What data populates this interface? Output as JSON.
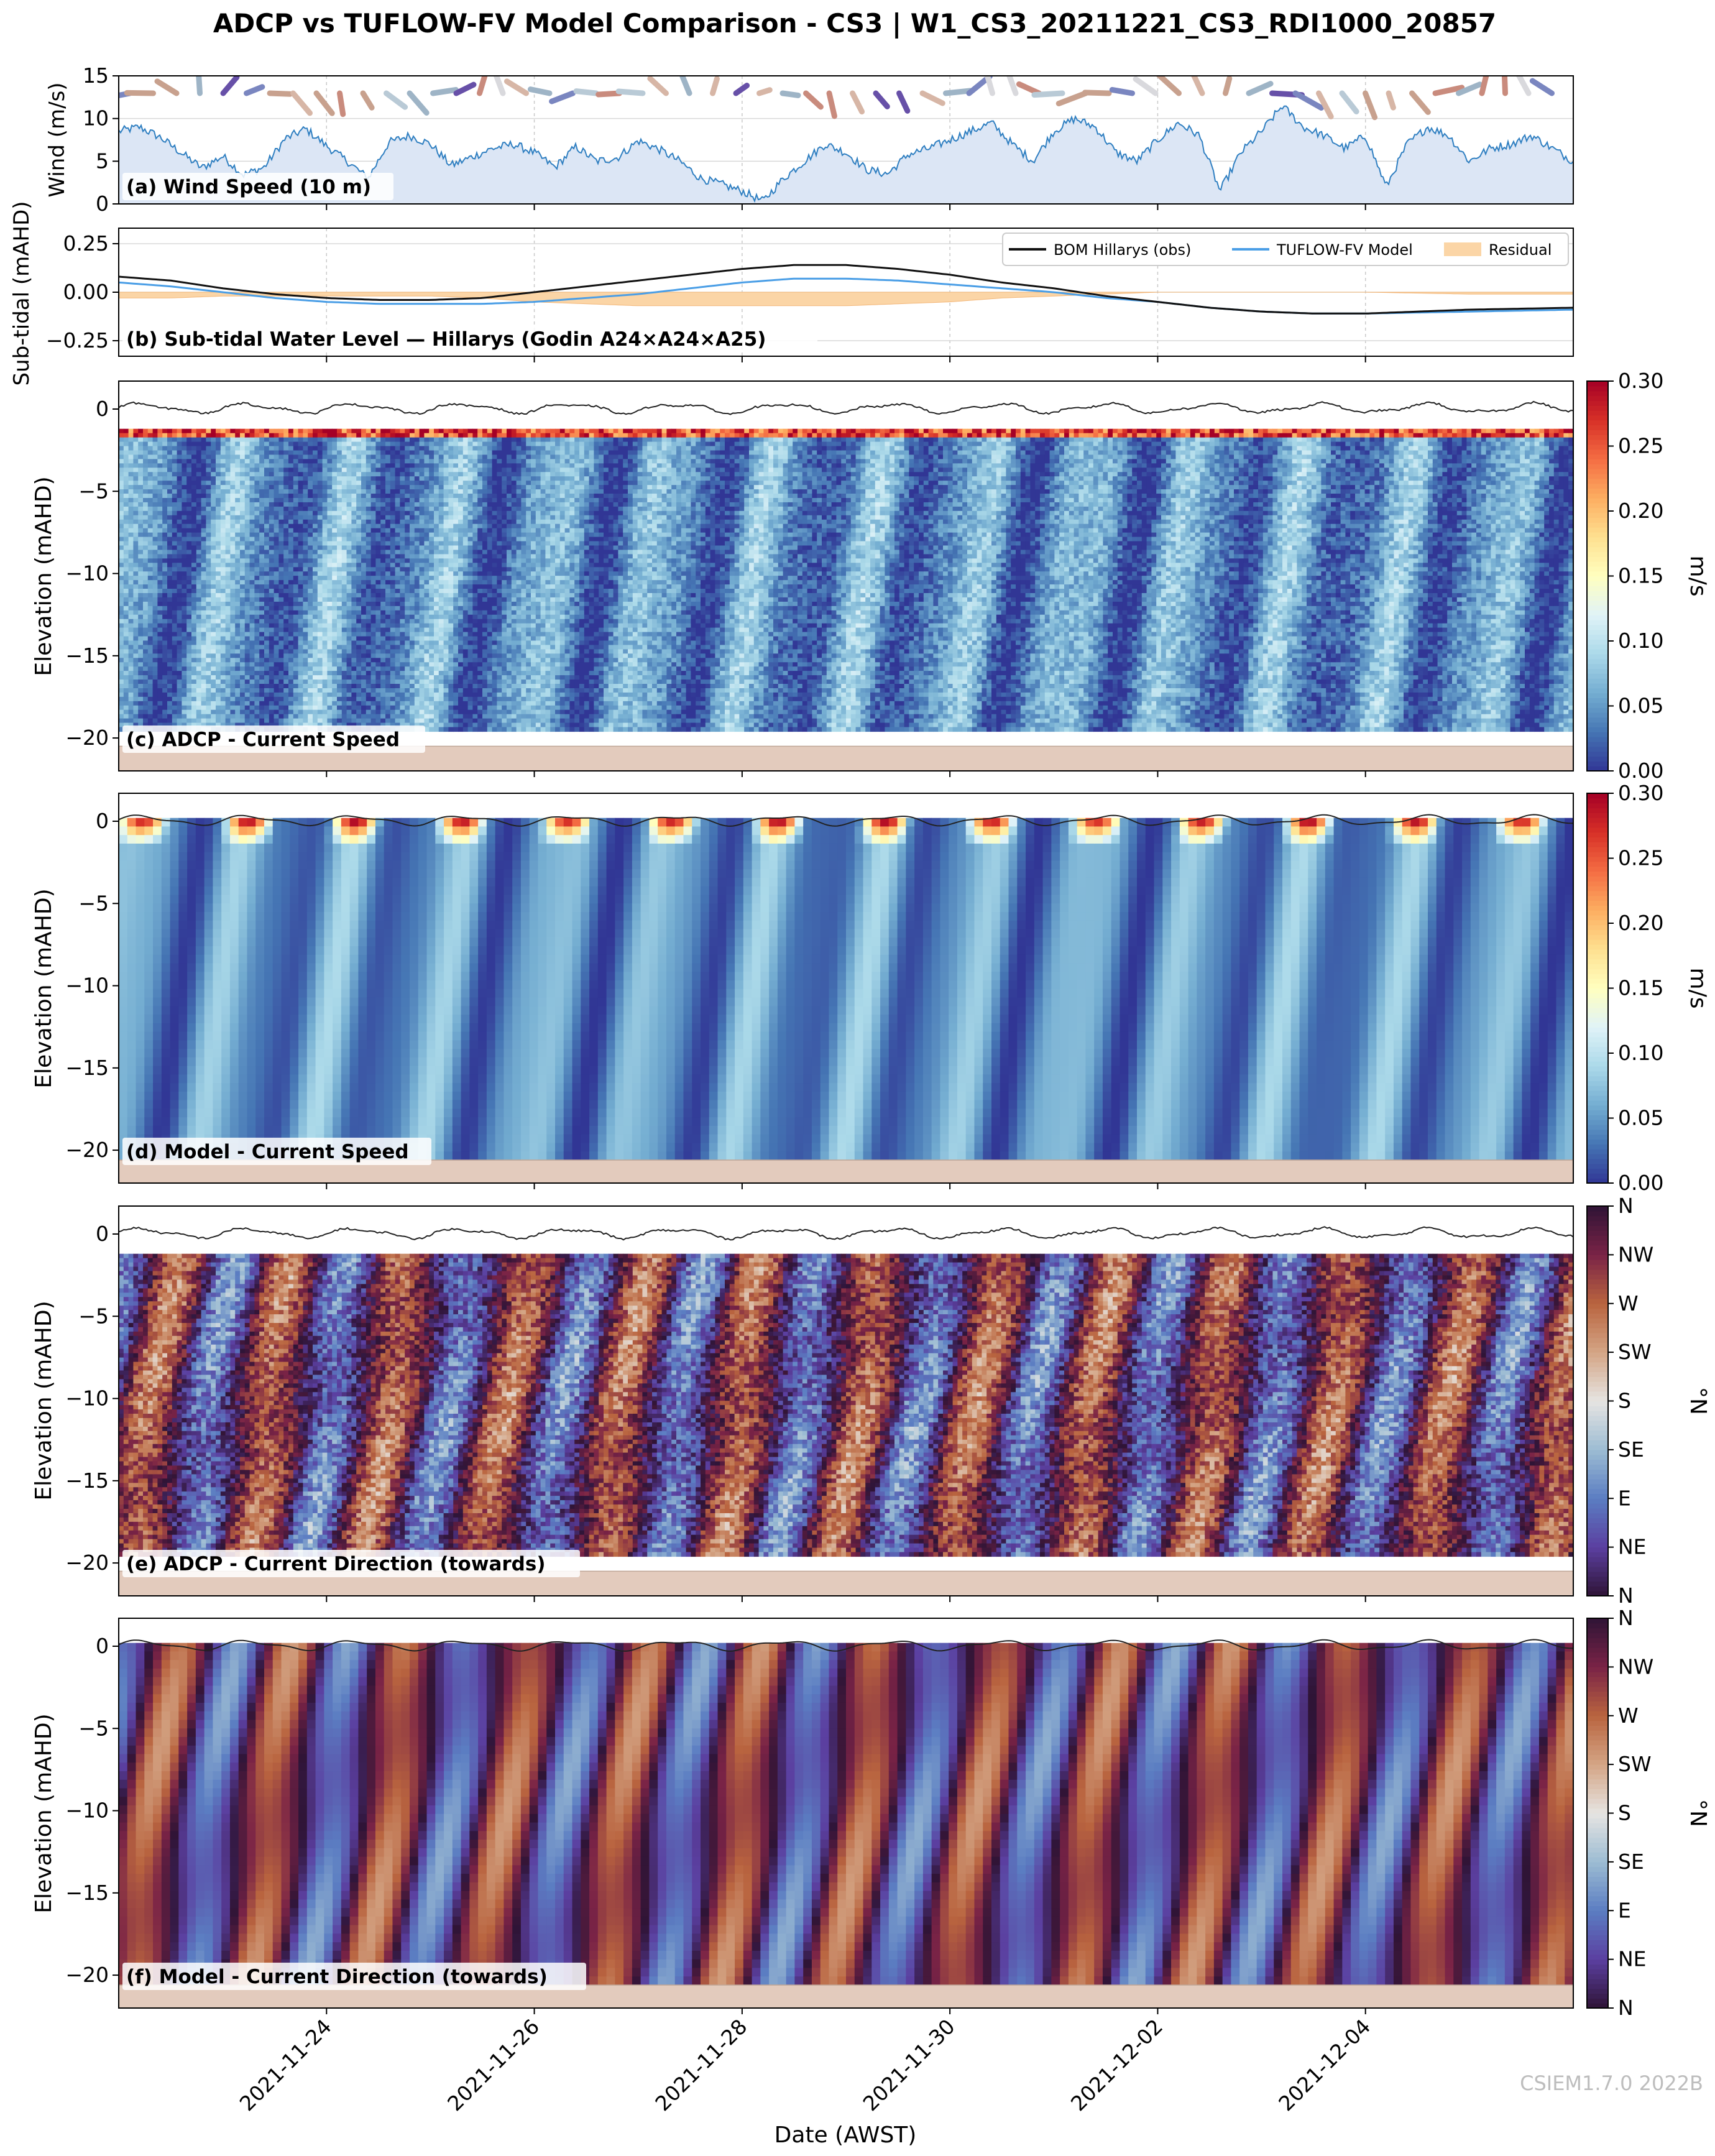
{
  "figure": {
    "title": "ADCP vs TUFLOW-FV Model Comparison - CS3 | W1_CS3_20211221_CS3_RDI1000_20857",
    "xlabel": "Date (AWST)",
    "watermark": "CSIEM1.7.0 2022B",
    "x_tick_labels": [
      "2021-11-24",
      "2021-11-26",
      "2021-11-28",
      "2021-11-30",
      "2021-12-02",
      "2021-12-04"
    ],
    "x_ticks_day": [
      1,
      3,
      5,
      7,
      9,
      11
    ],
    "x_range_day": [
      -1.0,
      13.0
    ]
  },
  "colors": {
    "wind_fill": "#dce6f5",
    "wind_line": "#2f7fc1",
    "obs_line": "#111111",
    "model_line": "#4a9ee6",
    "residual_fill": "#fbd5a6",
    "bed": "#e3cbbd",
    "speed_cmap": [
      "#313695",
      "#4575b4",
      "#74add1",
      "#abd9e9",
      "#e0f3f8",
      "#ffffbf",
      "#fee090",
      "#fdae61",
      "#f46d43",
      "#d73027",
      "#a50026"
    ],
    "dir_cmap": [
      "#2f1436",
      "#5b3fa0",
      "#5b7dc2",
      "#9cbcd3",
      "#e6e4e2",
      "#d4a585",
      "#b9643f",
      "#7a2346",
      "#2f1436"
    ]
  },
  "chart_data": [
    {
      "id": "a",
      "type": "area",
      "panel_label": "(a) Wind Speed (10 m)",
      "ylabel": "Wind (m/s)",
      "ylim": [
        0,
        15
      ],
      "y_ticks": [
        "0",
        "5",
        "10",
        "15"
      ],
      "grid": true,
      "series": [
        {
          "x_day": [
            -1.0,
            -0.8,
            -0.6,
            -0.4,
            -0.2,
            0.0,
            0.2,
            0.4,
            0.6,
            0.8,
            1.0,
            1.2,
            1.4,
            1.6,
            1.8,
            2.0,
            2.2,
            2.4,
            2.6,
            2.8,
            3.0,
            3.2,
            3.4,
            3.6,
            3.8,
            4.0,
            4.2,
            4.4,
            4.6,
            4.8,
            5.0,
            5.2,
            5.4,
            5.6,
            5.8,
            6.0,
            6.2,
            6.4,
            6.6,
            6.8,
            7.0,
            7.2,
            7.4,
            7.6,
            7.8,
            8.0,
            8.2,
            8.4,
            8.6,
            8.8,
            9.0,
            9.2,
            9.4,
            9.6,
            9.8,
            10.0,
            10.2,
            10.4,
            10.6,
            10.8,
            11.0,
            11.2,
            11.4,
            11.6,
            11.8,
            12.0,
            12.2,
            12.4,
            12.6,
            12.8,
            13.0
          ],
          "values": [
            8.5,
            9.0,
            7.8,
            6.0,
            4.2,
            5.6,
            3.4,
            4.3,
            7.6,
            8.8,
            6.8,
            5.0,
            3.0,
            7.2,
            8.0,
            7.0,
            4.5,
            5.5,
            6.5,
            7.0,
            6.0,
            4.3,
            6.7,
            5.0,
            5.4,
            7.4,
            6.4,
            5.0,
            3.0,
            2.3,
            1.5,
            0.3,
            3.0,
            5.0,
            7.0,
            6.0,
            4.0,
            3.5,
            5.8,
            6.5,
            7.5,
            8.5,
            9.5,
            7.0,
            5.0,
            8.5,
            10.0,
            9.0,
            6.0,
            5.0,
            7.5,
            9.5,
            8.0,
            1.5,
            6.0,
            8.5,
            11.5,
            9.0,
            8.0,
            6.5,
            8.0,
            2.0,
            7.0,
            9.0,
            8.0,
            5.0,
            6.5,
            7.0,
            8.0,
            6.5,
            5.0
          ]
        }
      ]
    },
    {
      "id": "b",
      "type": "line",
      "panel_label": "(b) Sub-tidal Water Level — Hillarys (Godin A24×A24×A25)",
      "ylabel": "Sub-tidal (mAHD)",
      "ylim": [
        -0.33,
        0.33
      ],
      "y_ticks": [
        "−0.25",
        "0.00",
        "0.25"
      ],
      "y_tick_values": [
        -0.25,
        0.0,
        0.25
      ],
      "legend_position": "top-right",
      "grid": true,
      "x_day": [
        -1.0,
        -0.5,
        0.0,
        0.5,
        1.0,
        1.5,
        2.0,
        2.5,
        3.0,
        3.5,
        4.0,
        4.5,
        5.0,
        5.5,
        6.0,
        6.5,
        7.0,
        7.5,
        8.0,
        8.5,
        9.0,
        9.5,
        10.0,
        10.5,
        11.0,
        11.5,
        12.0,
        12.5,
        13.0
      ],
      "series": [
        {
          "name": "BOM Hillarys (obs)",
          "values": [
            0.08,
            0.06,
            0.02,
            -0.01,
            -0.03,
            -0.04,
            -0.04,
            -0.03,
            0.0,
            0.03,
            0.06,
            0.09,
            0.12,
            0.14,
            0.14,
            0.12,
            0.09,
            0.05,
            0.02,
            -0.02,
            -0.05,
            -0.08,
            -0.1,
            -0.11,
            -0.11,
            -0.1,
            -0.09,
            -0.085,
            -0.08
          ]
        },
        {
          "name": "TUFLOW-FV Model",
          "values": [
            0.05,
            0.03,
            0.0,
            -0.03,
            -0.05,
            -0.06,
            -0.06,
            -0.06,
            -0.05,
            -0.03,
            -0.01,
            0.02,
            0.05,
            0.07,
            0.07,
            0.06,
            0.04,
            0.02,
            0.0,
            -0.03,
            -0.05,
            -0.08,
            -0.1,
            -0.11,
            -0.11,
            -0.105,
            -0.1,
            -0.095,
            -0.09
          ]
        },
        {
          "name": "Residual",
          "values": [
            -0.03,
            -0.03,
            -0.02,
            -0.02,
            -0.02,
            -0.02,
            -0.02,
            -0.03,
            -0.05,
            -0.06,
            -0.07,
            -0.07,
            -0.07,
            -0.07,
            -0.07,
            -0.06,
            -0.05,
            -0.03,
            -0.02,
            -0.01,
            0.0,
            0.0,
            0.0,
            0.0,
            0.0,
            -0.005,
            -0.01,
            -0.01,
            -0.01
          ]
        }
      ]
    },
    {
      "id": "c",
      "type": "heatmap",
      "panel_label": "(c) ADCP - Current Speed",
      "ylabel": "Elevation (mAHD)",
      "ylim": [
        -22,
        1.7
      ],
      "y_ticks": [
        "−20",
        "−15",
        "−10",
        "−5",
        "0"
      ],
      "y_tick_values": [
        -20,
        -15,
        -10,
        -5,
        0
      ],
      "colorbar_label": "m/s",
      "colorbar_ticks": [
        "0.00",
        "0.05",
        "0.10",
        "0.15",
        "0.20",
        "0.25",
        "0.30"
      ],
      "vlim": [
        0,
        0.3
      ],
      "data_top": -1.2,
      "data_bottom": -19.6,
      "bed_top": -20.5
    },
    {
      "id": "d",
      "type": "heatmap",
      "panel_label": "(d) Model - Current Speed",
      "ylabel": "Elevation (mAHD)",
      "ylim": [
        -22,
        1.7
      ],
      "y_ticks": [
        "−20",
        "−15",
        "−10",
        "−5",
        "0"
      ],
      "y_tick_values": [
        -20,
        -15,
        -10,
        -5,
        0
      ],
      "colorbar_label": "m/s",
      "colorbar_ticks": [
        "0.00",
        "0.05",
        "0.10",
        "0.15",
        "0.20",
        "0.25",
        "0.30"
      ],
      "vlim": [
        0,
        0.3
      ],
      "data_top": 0.2,
      "data_bottom": -20.6,
      "bed_top": -20.6
    },
    {
      "id": "e",
      "type": "heatmap",
      "panel_label": "(e) ADCP - Current Direction (towards)",
      "ylabel": "Elevation (mAHD)",
      "ylim": [
        -22,
        1.7
      ],
      "y_ticks": [
        "−20",
        "−15",
        "−10",
        "−5",
        "0"
      ],
      "y_tick_values": [
        -20,
        -15,
        -10,
        -5,
        0
      ],
      "colorbar_label": "°N",
      "colorbar_ticks": [
        "N",
        "NE",
        "E",
        "SE",
        "S",
        "SW",
        "W",
        "NW",
        "N"
      ],
      "data_top": -1.2,
      "data_bottom": -19.6,
      "bed_top": -20.5
    },
    {
      "id": "f",
      "type": "heatmap",
      "panel_label": "(f) Model - Current Direction (towards)",
      "ylabel": "Elevation (mAHD)",
      "ylim": [
        -22,
        1.7
      ],
      "y_ticks": [
        "−20",
        "−15",
        "−10",
        "−5",
        "0"
      ],
      "y_tick_values": [
        -20,
        -15,
        -10,
        -5,
        0
      ],
      "colorbar_label": "°N",
      "colorbar_ticks": [
        "N",
        "NE",
        "E",
        "SE",
        "S",
        "SW",
        "W",
        "NW",
        "N"
      ],
      "data_top": 0.2,
      "data_bottom": -20.6,
      "bed_top": -20.6
    }
  ]
}
